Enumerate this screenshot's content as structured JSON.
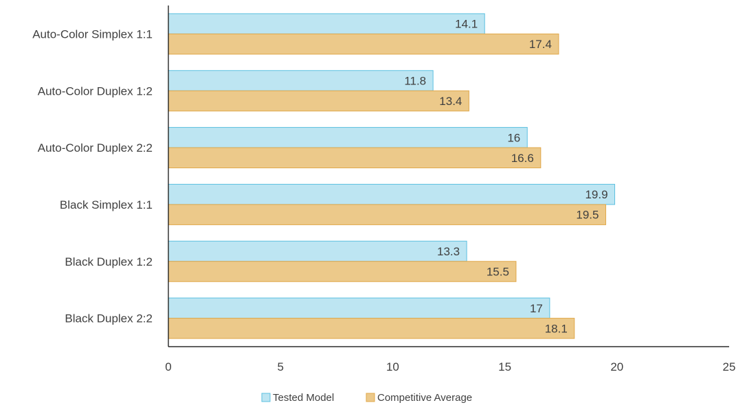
{
  "chart_data": {
    "type": "bar",
    "orientation": "horizontal",
    "categories": [
      "Auto-Color Simplex 1:1",
      "Auto-Color Duplex 1:2",
      "Auto-Color Duplex 2:2",
      "Black Simplex 1:1",
      "Black Duplex 1:2",
      "Black Duplex 2:2"
    ],
    "series": [
      {
        "name": "Tested Model",
        "values": [
          14.1,
          11.8,
          16,
          19.9,
          13.3,
          17
        ],
        "color": "#bde5f2",
        "stroke": "#5cc0e0"
      },
      {
        "name": "Competitive Average",
        "values": [
          17.4,
          13.4,
          16.6,
          19.5,
          15.5,
          18.1
        ],
        "color": "#ecc98a",
        "stroke": "#e0a84a"
      }
    ],
    "xlim": [
      0,
      25
    ],
    "xticks": [
      0,
      5,
      10,
      15,
      20,
      25
    ],
    "grid": false,
    "data_labels": true,
    "legend_position": "bottom"
  }
}
